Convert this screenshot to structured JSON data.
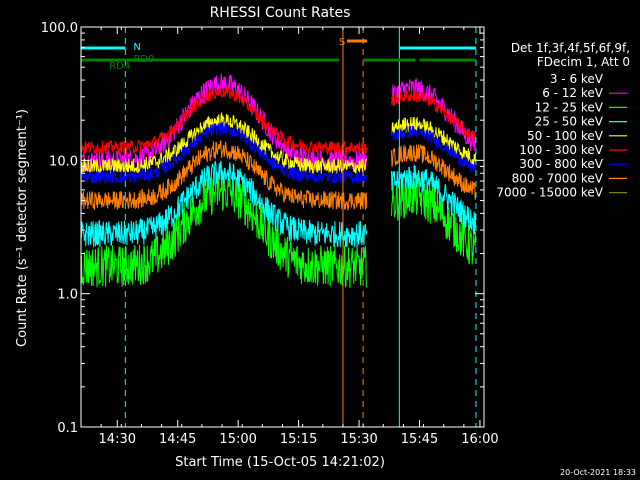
{
  "chart_data": {
    "type": "line",
    "title": "RHESSI Count Rates",
    "xlabel": "Start Time (15-Oct-05 14:21:02)",
    "ylabel": "Count Rate (s⁻¹ detector segment⁻¹)",
    "yscale": "log",
    "ylim": [
      0.1,
      100.0
    ],
    "xlim_minutes": [
      0,
      100
    ],
    "x_ticks": [
      {
        "label": "14:30",
        "minute": 9
      },
      {
        "label": "14:45",
        "minute": 24
      },
      {
        "label": "15:00",
        "minute": 39
      },
      {
        "label": "15:15",
        "minute": 54
      },
      {
        "label": "15:30",
        "minute": 69
      },
      {
        "label": "15:45",
        "minute": 84
      },
      {
        "label": "16:00",
        "minute": 99
      }
    ],
    "y_ticks": [
      {
        "label": "0.1",
        "value": 0.1
      },
      {
        "label": "1.0",
        "value": 1.0
      },
      {
        "label": "10.0",
        "value": 10.0
      },
      {
        "label": "100.0",
        "value": 100.0
      }
    ],
    "legend_header": [
      "Det 1f,3f,4f,5f,6f,9f,",
      "FDecim 1, Att 0"
    ],
    "series": [
      {
        "name": "3 - 6 keV",
        "color": "#000000",
        "base": 1.7,
        "amp": 4.1,
        "noise": 0.22
      },
      {
        "name": "6 - 12 keV",
        "color": "#ff00ff",
        "base": 10.0,
        "amp": 4.6,
        "noise": 0.08
      },
      {
        "name": "12 - 25 keV",
        "color": "#00ff00",
        "base": 1.6,
        "amp": 4.4,
        "noise": 0.16
      },
      {
        "name": "25 - 50 keV",
        "color": "#00ffff",
        "base": 2.8,
        "amp": 3.1,
        "noise": 0.1
      },
      {
        "name": "50 - 100 keV",
        "color": "#ffff00",
        "base": 9.0,
        "amp": 2.0,
        "noise": 0.06
      },
      {
        "name": "100 - 300 keV",
        "color": "#ff0000",
        "base": 12.5,
        "amp": 2.7,
        "noise": 0.05
      },
      {
        "name": "300 - 800 keV",
        "color": "#0000ff",
        "base": 7.5,
        "amp": 2.2,
        "noise": 0.05
      },
      {
        "name": "800 - 7000 keV",
        "color": "#ff8000",
        "base": 5.0,
        "amp": 2.4,
        "noise": 0.07
      },
      {
        "name": "7000 - 15000 keV",
        "color": "#808000",
        "base": 0,
        "amp": 0,
        "noise": 0
      }
    ],
    "data_gaps_minutes": [
      [
        71,
        77
      ]
    ],
    "vertical_lines": [
      {
        "minute": 0,
        "color": "#00ffff",
        "style": "solid"
      },
      {
        "minute": 11,
        "color": "#00ffff",
        "style": "dashed"
      },
      {
        "minute": 65,
        "color": "#ff8000",
        "style": "solid"
      },
      {
        "minute": 70,
        "color": "#ff8000",
        "style": "dashed"
      },
      {
        "minute": 79,
        "color": "#00ffff",
        "style": "solid"
      },
      {
        "minute": 98,
        "color": "#00ffff",
        "style": "dashed"
      }
    ],
    "status_bars": [
      {
        "color": "#00ffff",
        "segments": [
          [
            0,
            11
          ],
          [
            79,
            98
          ]
        ],
        "level": 0
      },
      {
        "color": "#ff8000",
        "segments": [
          [
            66,
            71
          ]
        ],
        "level": -1
      },
      {
        "color": "#008000",
        "segments": [
          [
            0,
            11
          ],
          [
            11,
            31
          ],
          [
            31,
            64
          ],
          [
            70,
            83
          ],
          [
            84,
            98
          ]
        ],
        "level": 1
      }
    ],
    "status_labels": [
      {
        "text": "N",
        "color": "#00ffff",
        "minute": 12
      },
      {
        "text": "S",
        "color": "#ff8000",
        "minute": 63
      },
      {
        "text": "RD0",
        "color": "#008000",
        "minute": 12
      },
      {
        "text": "RD4",
        "color": "#008000",
        "minute": 6
      }
    ],
    "grid": false,
    "legend_position": "right"
  },
  "footer": {
    "timestamp": "20-Oct-2021 18:33"
  }
}
